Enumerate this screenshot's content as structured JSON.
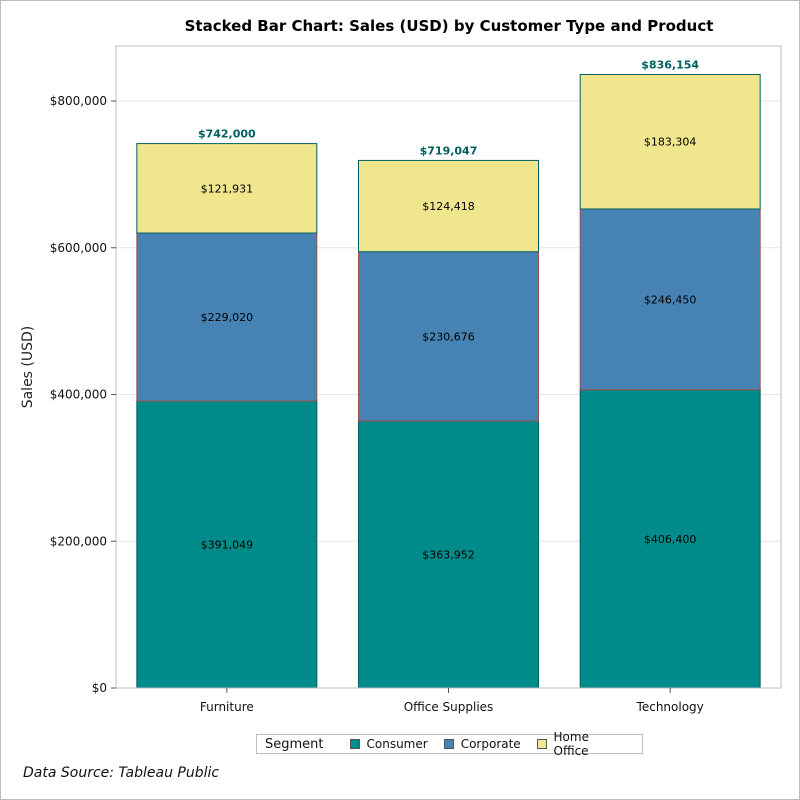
{
  "chart_data": {
    "type": "bar",
    "stacked": true,
    "title": "Stacked Bar Chart: Sales (USD) by Customer Type and Product",
    "xlabel": "",
    "ylabel": "Sales (USD)",
    "categories": [
      "Furniture",
      "Office Supplies",
      "Technology"
    ],
    "series": [
      {
        "name": "Consumer",
        "color": "#008b8b",
        "border": "#006060",
        "values": [
          391049,
          363952,
          406400
        ],
        "labels": [
          "$391,049",
          "$363,952",
          "$406,400"
        ]
      },
      {
        "name": "Corporate",
        "color": "#4682b4",
        "border": "#a0504a",
        "values": [
          229020,
          230676,
          246450
        ],
        "labels": [
          "$229,020",
          "$230,676",
          "$246,450"
        ]
      },
      {
        "name": "Home Office",
        "color": "#efe68e",
        "border": "#006060",
        "values": [
          121931,
          124418,
          183304
        ],
        "labels": [
          "$121,931",
          "$124,418",
          "$183,304"
        ]
      }
    ],
    "totals": [
      742000,
      719047,
      836154
    ],
    "total_labels": [
      "$742,000",
      "$719,047",
      "$836,154"
    ],
    "total_label_color": "#006060",
    "ylim": [
      0,
      875000
    ],
    "yticks": [
      0,
      200000,
      400000,
      600000,
      800000
    ],
    "ytick_labels": [
      "$0",
      "$200,000",
      "$400,000",
      "$600,000",
      "$800,000"
    ],
    "grid": true,
    "legend_position": "bottom"
  },
  "legend": {
    "title": "Segment",
    "items": [
      {
        "name": "Consumer",
        "color": "#008b8b"
      },
      {
        "name": "Corporate",
        "color": "#4682b4"
      },
      {
        "name": "Home Office",
        "color": "#efe68e"
      }
    ]
  },
  "source": "Data Source: Tableau Public"
}
